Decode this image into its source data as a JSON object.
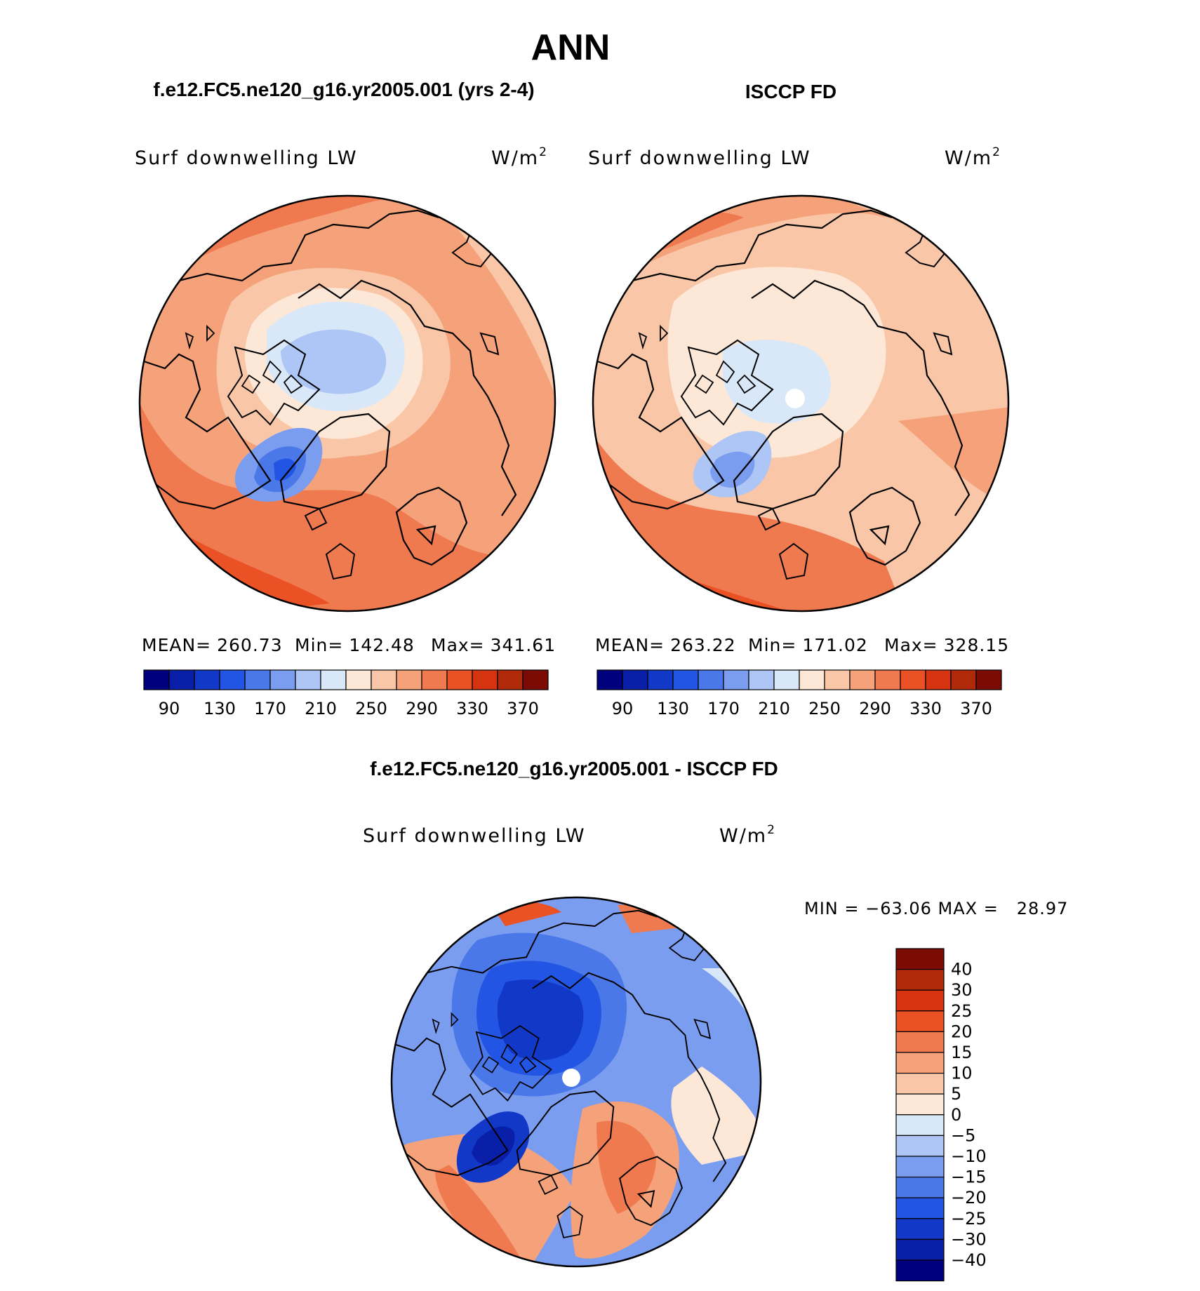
{
  "page": {
    "title": "ANN",
    "model_header": "f.e12.FC5.ne120_g16.yr2005.001 (yrs 2-4)",
    "obs_header": "ISCCP FD",
    "diff_header": "f.e12.FC5.ne120_g16.yr2005.001 - ISCCP FD"
  },
  "panels": {
    "model": {
      "variable": "Surf downwelling LW",
      "units_base": "W/m",
      "units_exp": "2",
      "stats": {
        "mean_label": "MEAN=",
        "mean": "260.73",
        "min_label": "Min=",
        "min": "142.48",
        "max_label": "Max=",
        "max": "341.61"
      }
    },
    "obs": {
      "variable": "Surf downwelling LW",
      "units_base": "W/m",
      "units_exp": "2",
      "stats": {
        "mean_label": "MEAN=",
        "mean": "263.22",
        "min_label": "Min=",
        "min": "171.02",
        "max_label": "Max=",
        "max": "328.15"
      }
    },
    "diff": {
      "variable": "Surf downwelling LW",
      "units_base": "W/m",
      "units_exp": "2",
      "minmax": "MIN = −63.06 MAX =   28.97"
    }
  },
  "colorbars": {
    "field": {
      "labels": [
        "90",
        "130",
        "170",
        "210",
        "250",
        "290",
        "330",
        "370"
      ],
      "colors": [
        "#00007e",
        "#0a1fa8",
        "#1238c8",
        "#2255e3",
        "#4a78e8",
        "#7b9df0",
        "#adc6f5",
        "#d9e8f9",
        "#fde8d7",
        "#f9c7a8",
        "#f5a27a",
        "#f07a50",
        "#ea5225",
        "#d63410",
        "#b02a0a",
        "#7c0a05"
      ]
    },
    "diff": {
      "labels": [
        "40",
        "30",
        "25",
        "20",
        "15",
        "10",
        "5",
        "0",
        "−5",
        "−10",
        "−15",
        "−20",
        "−25",
        "−30",
        "−40"
      ],
      "colors": [
        "#7c0a05",
        "#b02a0a",
        "#d63410",
        "#ea5225",
        "#f07a50",
        "#f5a27a",
        "#f9c7a8",
        "#fde8d7",
        "#d9e8f9",
        "#adc6f5",
        "#7b9df0",
        "#4a78e8",
        "#2255e3",
        "#1238c8",
        "#0a1fa8",
        "#00007e"
      ]
    }
  }
}
